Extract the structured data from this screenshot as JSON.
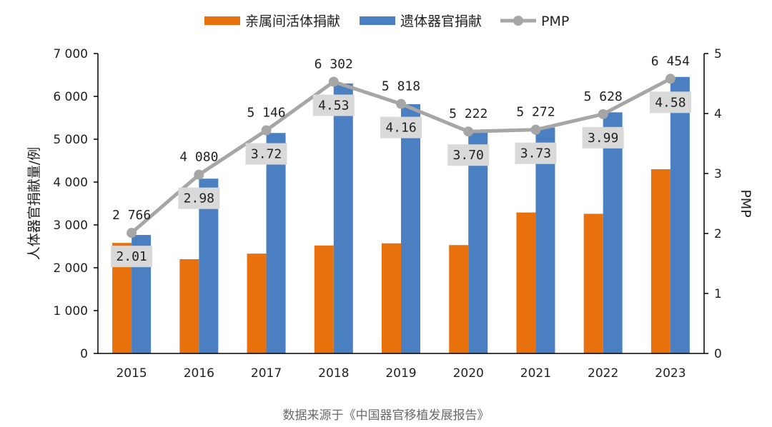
{
  "colors": {
    "living": "#E8710E",
    "deceased": "#4A7FC1",
    "pmp": "#A6A6A6",
    "label_box": "#D9D9D9",
    "axis": "#000000"
  },
  "source_note": "数据来源于《中国器官移植发展报告》",
  "chart_data": {
    "type": "bar",
    "categories": [
      "2015",
      "2016",
      "2017",
      "2018",
      "2019",
      "2020",
      "2021",
      "2022",
      "2023"
    ],
    "series": [
      {
        "name": "亲属间活体捐献",
        "kind": "bar",
        "axis": "left",
        "color": "#E8710E",
        "values": [
          2580,
          2200,
          2330,
          2520,
          2570,
          2530,
          3290,
          3260,
          4300
        ]
      },
      {
        "name": "遗体器官捐献",
        "kind": "bar",
        "axis": "left",
        "color": "#4A7FC1",
        "values": [
          2766,
          4080,
          5146,
          6302,
          5818,
          5222,
          5272,
          5628,
          6454
        ],
        "value_labels": [
          "2 766",
          "4 080",
          "5 146",
          "6 302",
          "5 818",
          "5 222",
          "5 272",
          "5 628",
          "6 454"
        ]
      },
      {
        "name": "PMP",
        "kind": "line",
        "axis": "right",
        "color": "#A6A6A6",
        "values": [
          2.01,
          2.98,
          3.72,
          4.53,
          4.16,
          3.7,
          3.73,
          3.99,
          4.58
        ],
        "value_labels": [
          "2.01",
          "2.98",
          "3.72",
          "4.53",
          "4.16",
          "3.70",
          "3.73",
          "3.99",
          "4.58"
        ]
      }
    ],
    "ylabel": "人体器官捐献量/例",
    "y2label": "PMP",
    "ylim": [
      0,
      7000
    ],
    "y2lim": [
      0,
      5
    ],
    "yticks": [
      0,
      1000,
      2000,
      3000,
      4000,
      5000,
      6000,
      7000
    ],
    "ytick_labels": [
      "0",
      "1 000",
      "2 000",
      "3 000",
      "4 000",
      "5 000",
      "6 000",
      "7 000"
    ],
    "y2ticks": [
      0,
      1,
      2,
      3,
      4,
      5
    ],
    "y2tick_labels": [
      "0",
      "1",
      "2",
      "3",
      "4",
      "5"
    ],
    "grid": false,
    "legend_position": "top-center"
  }
}
